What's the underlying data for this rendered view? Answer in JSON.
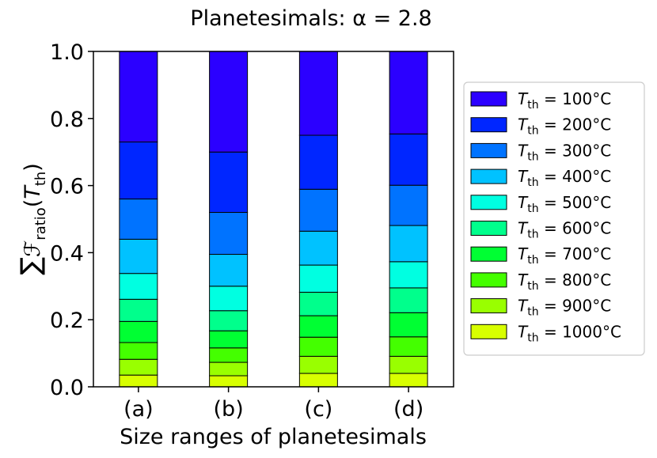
{
  "chart_data": {
    "type": "bar",
    "stacked": true,
    "title": "Planetesimals: α = 2.8",
    "xlabel": "Size ranges of planetesimals",
    "ylabel": "∑𝓕ratio(Tth)",
    "ylim": [
      0,
      1.0
    ],
    "yticks": [
      "0.0",
      "0.2",
      "0.4",
      "0.6",
      "0.8",
      "1.0"
    ],
    "categories": [
      "(a)",
      "(b)",
      "(c)",
      "(d)"
    ],
    "legend_position": "right",
    "series": [
      {
        "name": "T_th = 1000 °C",
        "temp": "1000",
        "color": "#d8ff00",
        "values": [
          0.035,
          0.033,
          0.04,
          0.04
        ]
      },
      {
        "name": "T_th = 900 °C",
        "temp": "900",
        "color": "#99ff00",
        "values": [
          0.047,
          0.04,
          0.051,
          0.051
        ]
      },
      {
        "name": "T_th = 800 °C",
        "temp": "800",
        "color": "#44ff00",
        "values": [
          0.05,
          0.043,
          0.057,
          0.058
        ]
      },
      {
        "name": "T_th = 700 °C",
        "temp": "700",
        "color": "#00ff33",
        "values": [
          0.063,
          0.051,
          0.064,
          0.072
        ]
      },
      {
        "name": "T_th = 600 °C",
        "temp": "600",
        "color": "#00ff8c",
        "values": [
          0.066,
          0.06,
          0.07,
          0.074
        ]
      },
      {
        "name": "T_th = 500 °C",
        "temp": "500",
        "color": "#00ffe1",
        "values": [
          0.077,
          0.073,
          0.081,
          0.078
        ]
      },
      {
        "name": "T_th = 400 °C",
        "temp": "400",
        "color": "#00c2ff",
        "values": [
          0.102,
          0.095,
          0.101,
          0.108
        ]
      },
      {
        "name": "T_th = 300 °C",
        "temp": "300",
        "color": "#0073ff",
        "values": [
          0.12,
          0.125,
          0.125,
          0.12
        ]
      },
      {
        "name": "T_th = 200 °C",
        "temp": "200",
        "color": "#0026ff",
        "values": [
          0.17,
          0.18,
          0.161,
          0.153
        ]
      },
      {
        "name": "T_th = 100 °C",
        "temp": "100",
        "color": "#2b00ff",
        "values": [
          0.27,
          0.3,
          0.25,
          0.246
        ]
      }
    ]
  }
}
